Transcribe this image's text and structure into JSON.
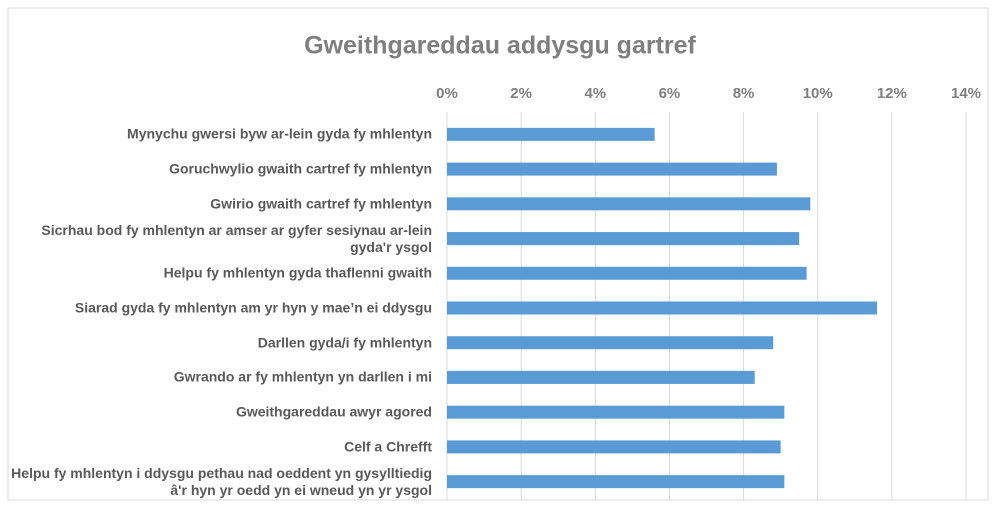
{
  "chart_data": {
    "type": "hbar",
    "title": "Gweithgareddau addysgu gartref",
    "categories": [
      "Mynychu gwersi byw ar-lein gyda fy mhlentyn",
      "Goruchwylio gwaith cartref fy mhlentyn",
      "Gwirio gwaith cartref fy mhlentyn",
      "Sicrhau bod fy mhlentyn ar amser ar gyfer sesiynau ar-lein gyda'r ysgol",
      "Helpu fy mhlentyn gyda thaflenni gwaith",
      "Siarad gyda fy mhlentyn am yr hyn y mae’n ei ddysgu",
      "Darllen gyda/i fy mhlentyn",
      "Gwrando ar fy mhlentyn yn darllen i mi",
      "Gweithgareddau awyr agored",
      "Celf a Chrefft",
      "Helpu fy mhlentyn i ddysgu pethau nad oeddent yn gysylltiedig â'r hyn yr oedd yn ei wneud yn yr ysgol"
    ],
    "values": [
      5.6,
      8.9,
      9.8,
      9.5,
      9.7,
      11.6,
      8.8,
      8.3,
      9.1,
      9.0,
      9.1
    ],
    "color": "#5b9bd5",
    "xlim": [
      0,
      14
    ],
    "xticks": [
      {
        "value": 0,
        "label": "0%"
      },
      {
        "value": 2,
        "label": "2%"
      },
      {
        "value": 4,
        "label": "4%"
      },
      {
        "value": 6,
        "label": "6%"
      },
      {
        "value": 8,
        "label": "8%"
      },
      {
        "value": 10,
        "label": "10%"
      },
      {
        "value": 12,
        "label": "12%"
      },
      {
        "value": 14,
        "label": "14%"
      }
    ],
    "grid": true
  }
}
